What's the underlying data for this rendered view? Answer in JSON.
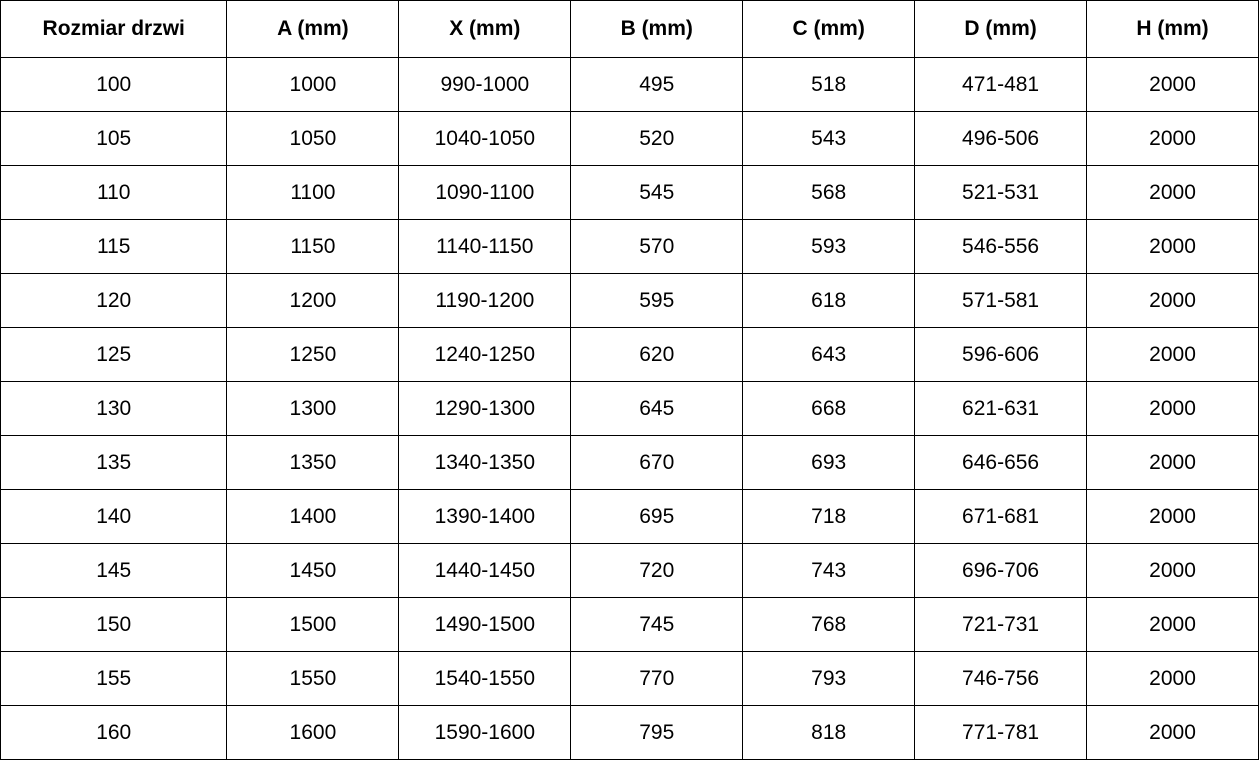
{
  "chart_data": {
    "type": "table",
    "title": "",
    "columns": [
      "Rozmiar drzwi",
      "A (mm)",
      "X (mm)",
      "B (mm)",
      "C (mm)",
      "D (mm)",
      "H (mm)"
    ],
    "rows": [
      [
        "100",
        "1000",
        "990-1000",
        "495",
        "518",
        "471-481",
        "2000"
      ],
      [
        "105",
        "1050",
        "1040-1050",
        "520",
        "543",
        "496-506",
        "2000"
      ],
      [
        "110",
        "1100",
        "1090-1100",
        "545",
        "568",
        "521-531",
        "2000"
      ],
      [
        "115",
        "1150",
        "1140-1150",
        "570",
        "593",
        "546-556",
        "2000"
      ],
      [
        "120",
        "1200",
        "1190-1200",
        "595",
        "618",
        "571-581",
        "2000"
      ],
      [
        "125",
        "1250",
        "1240-1250",
        "620",
        "643",
        "596-606",
        "2000"
      ],
      [
        "130",
        "1300",
        "1290-1300",
        "645",
        "668",
        "621-631",
        "2000"
      ],
      [
        "135",
        "1350",
        "1340-1350",
        "670",
        "693",
        "646-656",
        "2000"
      ],
      [
        "140",
        "1400",
        "1390-1400",
        "695",
        "718",
        "671-681",
        "2000"
      ],
      [
        "145",
        "1450",
        "1440-1450",
        "720",
        "743",
        "696-706",
        "2000"
      ],
      [
        "150",
        "1500",
        "1490-1500",
        "745",
        "768",
        "721-731",
        "2000"
      ],
      [
        "155",
        "1550",
        "1540-1550",
        "770",
        "793",
        "746-756",
        "2000"
      ],
      [
        "160",
        "1600",
        "1590-1600",
        "795",
        "818",
        "771-781",
        "2000"
      ]
    ]
  },
  "colors": {
    "border": "#000000",
    "text": "#000000",
    "background": "#ffffff"
  }
}
